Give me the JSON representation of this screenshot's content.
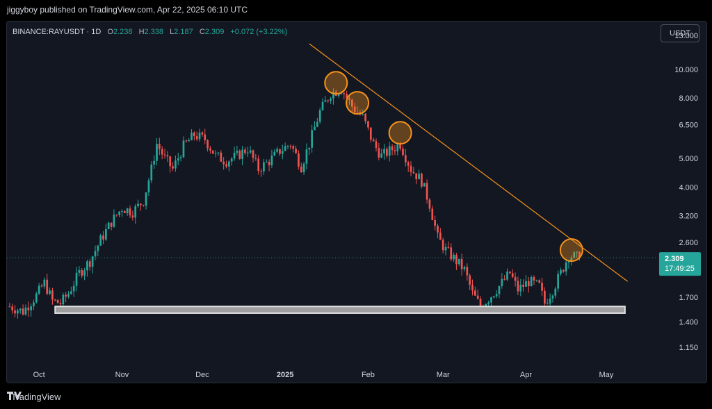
{
  "header": {
    "published": "jiggyboy published on TradingView.com, Apr 22, 2025 06:10 UTC"
  },
  "legend": {
    "symbol": "BINANCE:RAYUSDT · 1D",
    "o_label": "O",
    "o": "2.238",
    "h_label": "H",
    "h": "2.338",
    "l_label": "L",
    "l": "2.187",
    "c_label": "C",
    "c": "2.309",
    "change": "+0.072 (+3.22%)"
  },
  "currency_button": "USDT",
  "price_badge": {
    "price": "2.309",
    "countdown": "17:49:25"
  },
  "footer": {
    "brand": "TradingView",
    "logo": "tradingview-logo"
  },
  "colors": {
    "up": "#26a69a",
    "down": "#ef5350",
    "trendline": "#f7931a",
    "circle": "#f7931a",
    "support": "#e0e0e0",
    "background": "#131722"
  },
  "chart_data": {
    "type": "candlestick",
    "scale": "log",
    "y_ticks": [
      "13.000",
      "10.000",
      "8.000",
      "6.500",
      "5.000",
      "4.000",
      "3.200",
      "2.600",
      "1.700",
      "1.400",
      "1.150"
    ],
    "x_ticks": [
      "Oct",
      "Nov",
      "Dec",
      "2025",
      "Feb",
      "Mar",
      "Apr",
      "May"
    ],
    "ylim": [
      1.0,
      14.5
    ],
    "xlim": [
      "2024-09-19",
      "2025-05-20"
    ],
    "last_price": 2.309,
    "trendline": [
      {
        "date": "2025-01-10",
        "price": 12.2
      },
      {
        "date": "2025-05-09",
        "price": 1.92
      }
    ],
    "support_zone": {
      "from": "2024-10-07",
      "to": "2025-05-08",
      "low": 1.5,
      "high": 1.58
    },
    "touch_points": [
      {
        "date": "2025-01-20",
        "price": 9.0
      },
      {
        "date": "2025-01-28",
        "price": 7.7
      },
      {
        "date": "2025-02-13",
        "price": 6.1
      },
      {
        "date": "2025-04-18",
        "price": 2.45
      }
    ],
    "close_path": [
      [
        "2024-09-20",
        1.58
      ],
      [
        "2024-09-25",
        1.52
      ],
      [
        "2024-09-30",
        1.72
      ],
      [
        "2024-10-03",
        1.9
      ],
      [
        "2024-10-06",
        1.65
      ],
      [
        "2024-10-09",
        1.62
      ],
      [
        "2024-10-12",
        1.75
      ],
      [
        "2024-10-16",
        2.05
      ],
      [
        "2024-10-20",
        2.25
      ],
      [
        "2024-10-24",
        2.65
      ],
      [
        "2024-10-28",
        3.05
      ],
      [
        "2024-11-01",
        3.4
      ],
      [
        "2024-11-05",
        3.3
      ],
      [
        "2024-11-09",
        3.6
      ],
      [
        "2024-11-12",
        4.6
      ],
      [
        "2024-11-14",
        5.6
      ],
      [
        "2024-11-17",
        5.0
      ],
      [
        "2024-11-20",
        4.6
      ],
      [
        "2024-11-24",
        5.5
      ],
      [
        "2024-11-28",
        6.0
      ],
      [
        "2024-12-02",
        5.8
      ],
      [
        "2024-12-06",
        5.1
      ],
      [
        "2024-12-10",
        4.9
      ],
      [
        "2024-12-14",
        5.1
      ],
      [
        "2024-12-18",
        5.4
      ],
      [
        "2024-12-22",
        4.6
      ],
      [
        "2024-12-26",
        4.9
      ],
      [
        "2024-12-30",
        5.3
      ],
      [
        "2025-01-03",
        5.6
      ],
      [
        "2025-01-07",
        4.7
      ],
      [
        "2025-01-10",
        5.6
      ],
      [
        "2025-01-14",
        7.2
      ],
      [
        "2025-01-18",
        8.3
      ],
      [
        "2025-01-22",
        8.6
      ],
      [
        "2025-01-26",
        7.5
      ],
      [
        "2025-01-30",
        6.9
      ],
      [
        "2025-02-03",
        5.6
      ],
      [
        "2025-02-06",
        5.1
      ],
      [
        "2025-02-09",
        5.3
      ],
      [
        "2025-02-13",
        5.6
      ],
      [
        "2025-02-17",
        4.6
      ],
      [
        "2025-02-21",
        4.2
      ],
      [
        "2025-02-24",
        3.5
      ],
      [
        "2025-02-27",
        2.7
      ],
      [
        "2025-03-02",
        2.45
      ],
      [
        "2025-03-05",
        2.3
      ],
      [
        "2025-03-09",
        2.1
      ],
      [
        "2025-03-12",
        1.75
      ],
      [
        "2025-03-15",
        1.58
      ],
      [
        "2025-03-18",
        1.68
      ],
      [
        "2025-03-22",
        1.85
      ],
      [
        "2025-03-26",
        2.05
      ],
      [
        "2025-03-29",
        1.8
      ],
      [
        "2025-04-02",
        1.92
      ],
      [
        "2025-04-06",
        1.85
      ],
      [
        "2025-04-08",
        1.62
      ],
      [
        "2025-04-11",
        1.8
      ],
      [
        "2025-04-14",
        2.05
      ],
      [
        "2025-04-17",
        2.35
      ],
      [
        "2025-04-21",
        2.309
      ]
    ]
  }
}
